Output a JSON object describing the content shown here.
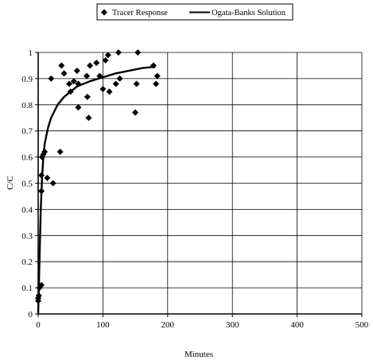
{
  "chart_data": {
    "type": "scatter",
    "xlabel": "Minutes",
    "ylabel": "C/C",
    "xlim": [
      0,
      500
    ],
    "ylim": [
      0,
      1
    ],
    "x_ticks": [
      0,
      100,
      200,
      300,
      400,
      500
    ],
    "y_ticks": [
      0,
      0.1,
      0.2,
      0.3,
      0.4,
      0.5,
      0.6,
      0.7,
      0.8,
      0.9,
      1
    ],
    "grid": "on",
    "legend_position": "top-center",
    "series": [
      {
        "name": "Tracer Response",
        "kind": "scatter",
        "marker": "diamond",
        "color": "#000000",
        "points": [
          [
            0,
            0.05
          ],
          [
            0,
            0.06
          ],
          [
            1,
            0.07
          ],
          [
            2,
            0.1
          ],
          [
            5,
            0.11
          ],
          [
            5,
            0.47
          ],
          [
            5,
            0.53
          ],
          [
            6,
            0.6
          ],
          [
            8,
            0.61
          ],
          [
            10,
            0.62
          ],
          [
            14,
            0.52
          ],
          [
            20,
            0.9
          ],
          [
            23,
            0.5
          ],
          [
            34,
            0.62
          ],
          [
            36,
            0.95
          ],
          [
            40,
            0.92
          ],
          [
            48,
            0.88
          ],
          [
            50,
            0.85
          ],
          [
            55,
            0.89
          ],
          [
            60,
            0.93
          ],
          [
            62,
            0.79
          ],
          [
            62,
            0.88
          ],
          [
            75,
            0.91
          ],
          [
            76,
            0.83
          ],
          [
            78,
            0.75
          ],
          [
            80,
            0.95
          ],
          [
            90,
            0.96
          ],
          [
            95,
            0.91
          ],
          [
            100,
            0.86
          ],
          [
            104,
            0.97
          ],
          [
            108,
            0.99
          ],
          [
            110,
            0.85
          ],
          [
            120,
            0.88
          ],
          [
            124,
            1.0
          ],
          [
            126,
            0.9
          ],
          [
            150,
            0.77
          ],
          [
            152,
            0.88
          ],
          [
            154,
            1.0
          ],
          [
            178,
            0.95
          ],
          [
            182,
            0.88
          ],
          [
            184,
            0.91
          ]
        ]
      },
      {
        "name": "Ogata-Banks Solution",
        "kind": "line",
        "color": "#000000",
        "points": [
          [
            0,
            0.0
          ],
          [
            2,
            0.2
          ],
          [
            4,
            0.4
          ],
          [
            6,
            0.52
          ],
          [
            8,
            0.6
          ],
          [
            10,
            0.65
          ],
          [
            15,
            0.71
          ],
          [
            20,
            0.75
          ],
          [
            30,
            0.8
          ],
          [
            40,
            0.83
          ],
          [
            60,
            0.87
          ],
          [
            80,
            0.89
          ],
          [
            100,
            0.905
          ],
          [
            120,
            0.92
          ],
          [
            140,
            0.93
          ],
          [
            160,
            0.94
          ],
          [
            180,
            0.945
          ]
        ]
      }
    ]
  }
}
